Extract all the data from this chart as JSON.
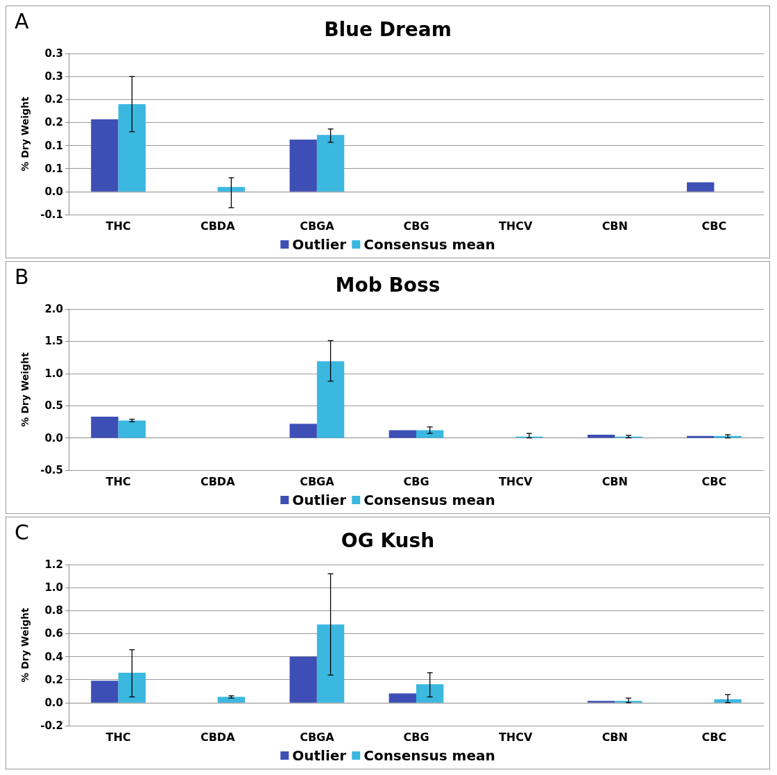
{
  "chart_data": [
    {
      "type": "bar",
      "title": "Blue Dream",
      "annotations": [
        "A"
      ],
      "ylabel": "% Dry Weight",
      "categories": [
        "THC",
        "CBDA",
        "CBGA",
        "CBG",
        "THCV",
        "CBN",
        "CBC"
      ],
      "series": [
        {
          "name": "Outlier",
          "color": "#3d4fb5",
          "values": [
            0.157,
            0,
            0.113,
            0,
            0,
            0,
            0.02
          ]
        },
        {
          "name": "Consensus mean",
          "color": "#3bb8e0",
          "values": [
            0.19,
            0.01,
            0.123,
            0,
            0,
            0,
            0
          ],
          "errors": [
            [
              0.13,
              0.25
            ],
            [
              -0.035,
              0.03
            ],
            [
              0.107,
              0.136
            ],
            null,
            null,
            null,
            null
          ]
        }
      ],
      "ylim": [
        -0.05,
        0.3
      ],
      "yticks": [
        {
          "value": -0.05,
          "label": "-0.1"
        },
        {
          "value": 0,
          "label": "0.0"
        },
        {
          "value": 0.05,
          "label": "0.1"
        },
        {
          "value": 0.1,
          "label": "0.1"
        },
        {
          "value": 0.15,
          "label": "0.2"
        },
        {
          "value": 0.2,
          "label": "0.2"
        },
        {
          "value": 0.25,
          "label": "0.3"
        },
        {
          "value": 0.3,
          "label": "0.3"
        }
      ],
      "grid": "y",
      "legend": "bottom"
    },
    {
      "type": "bar",
      "title": "Mob Boss",
      "annotations": [
        "B"
      ],
      "ylabel": "% Dry Weight",
      "categories": [
        "THC",
        "CBDA",
        "CBGA",
        "CBG",
        "THCV",
        "CBN",
        "CBC"
      ],
      "series": [
        {
          "name": "Outlier",
          "color": "#3d4fb5",
          "values": [
            0.33,
            0,
            0.22,
            0.12,
            0,
            0.05,
            0.03
          ]
        },
        {
          "name": "Consensus mean",
          "color": "#3bb8e0",
          "values": [
            0.27,
            0,
            1.19,
            0.12,
            0.02,
            0.02,
            0.03
          ],
          "errors": [
            [
              0.25,
              0.29
            ],
            null,
            [
              0.88,
              1.51
            ],
            [
              0.07,
              0.17
            ],
            [
              0,
              0.07
            ],
            [
              0,
              0.04
            ],
            [
              0,
              0.05
            ]
          ]
        }
      ],
      "ylim": [
        -0.5,
        2
      ],
      "yticks": [
        {
          "value": -0.5,
          "label": "-0.5"
        },
        {
          "value": 0,
          "label": "0.0"
        },
        0.5,
        {
          "value": 1,
          "label": "1.0"
        },
        1.5,
        {
          "value": 2,
          "label": "2.0"
        }
      ],
      "grid": "y",
      "legend": "bottom"
    },
    {
      "type": "bar",
      "title": "OG Kush",
      "annotations": [
        "C"
      ],
      "ylabel": "% Dry Weight",
      "categories": [
        "THC",
        "CBDA",
        "CBGA",
        "CBG",
        "THCV",
        "CBN",
        "CBC"
      ],
      "series": [
        {
          "name": "Outlier",
          "color": "#3d4fb5",
          "values": [
            0.19,
            0,
            0.4,
            0.08,
            0,
            0.015,
            0
          ]
        },
        {
          "name": "Consensus mean",
          "color": "#3bb8e0",
          "values": [
            0.26,
            0.05,
            0.68,
            0.16,
            0,
            0.015,
            0.03
          ],
          "errors": [
            [
              0.05,
              0.46
            ],
            [
              0.04,
              0.06
            ],
            [
              0.24,
              1.12
            ],
            [
              0.05,
              0.26
            ],
            null,
            [
              0,
              0.04
            ],
            [
              0,
              0.07
            ]
          ]
        }
      ],
      "ylim": [
        -0.2,
        1.2
      ],
      "yticks": [
        -0.2,
        {
          "value": 0,
          "label": "0.0"
        },
        {
          "value": 0.2,
          "label": "0.2"
        },
        {
          "value": 0.4,
          "label": "0.4"
        },
        {
          "value": 0.6,
          "label": "0.6"
        },
        {
          "value": 0.8,
          "label": "0.8"
        },
        {
          "value": 1,
          "label": "1.0"
        },
        {
          "value": 1.2,
          "label": "1.2"
        }
      ],
      "grid": "y",
      "legend": "bottom"
    }
  ]
}
